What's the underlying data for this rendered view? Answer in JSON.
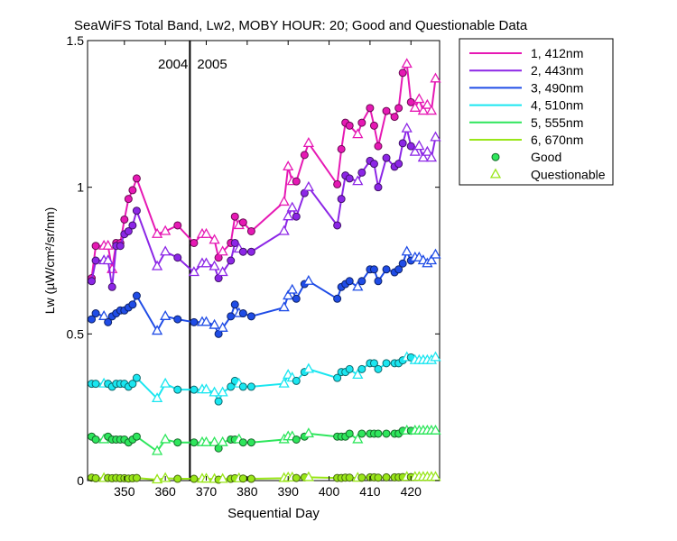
{
  "chart_data": {
    "type": "line",
    "title": "SeaWiFS Total Band,  Lw2, MOBY HOUR: 20;  Good and Questionable Data",
    "xlabel": "Sequential Day",
    "ylabel": "Lw (µW/cm²/sr/nm)",
    "xlim": [
      341,
      427
    ],
    "ylim": [
      0,
      1.5
    ],
    "xticks": [
      350,
      360,
      370,
      380,
      390,
      400,
      410,
      420
    ],
    "yticks": [
      0,
      0.5,
      1,
      1.5
    ],
    "ytick_labels": [
      "0",
      "0.5",
      "1",
      "1.5"
    ],
    "grid": false,
    "legend_position": "outside-right-top",
    "year_divider": {
      "x": 366,
      "left_label": "2004",
      "right_label": "2005"
    },
    "x": [
      342,
      343,
      345,
      346,
      347,
      348,
      349,
      350,
      351,
      352,
      353,
      358,
      360,
      363,
      367,
      369,
      370,
      372,
      373,
      374,
      376,
      377,
      378,
      379,
      381,
      389,
      390,
      391,
      392,
      394,
      395,
      402,
      403,
      404,
      405,
      407,
      408,
      410,
      411,
      412,
      414,
      416,
      417,
      418,
      419,
      420,
      421,
      422,
      423,
      424,
      425,
      426
    ],
    "series": [
      {
        "name": "1, 412nm",
        "color": "#e619b4",
        "values": [
          0.69,
          0.8,
          0.8,
          0.8,
          0.72,
          0.81,
          0.81,
          0.89,
          0.96,
          0.99,
          1.03,
          0.84,
          0.85,
          0.87,
          0.81,
          0.84,
          0.84,
          0.82,
          0.76,
          0.78,
          0.81,
          0.9,
          0.87,
          0.88,
          0.85,
          0.95,
          1.07,
          1.02,
          1.02,
          1.11,
          1.15,
          1.01,
          1.13,
          1.22,
          1.21,
          1.18,
          1.22,
          1.27,
          1.21,
          1.14,
          1.26,
          1.24,
          1.27,
          1.39,
          1.42,
          1.29,
          1.27,
          1.3,
          1.26,
          1.28,
          1.26,
          1.37
        ],
        "quality": [
          "G",
          "G",
          "Q",
          "Q",
          "Q",
          "G",
          "G",
          "G",
          "G",
          "G",
          "G",
          "Q",
          "Q",
          "G",
          "G",
          "Q",
          "Q",
          "Q",
          "G",
          "Q",
          "G",
          "G",
          "Q",
          "G",
          "G",
          "Q",
          "Q",
          "Q",
          "G",
          "G",
          "Q",
          "G",
          "G",
          "G",
          "G",
          "Q",
          "G",
          "G",
          "G",
          "G",
          "G",
          "G",
          "G",
          "G",
          "Q",
          "G",
          "Q",
          "Q",
          "Q",
          "Q",
          "Q",
          "Q"
        ]
      },
      {
        "name": "2, 443nm",
        "color": "#8c26e6",
        "values": [
          0.68,
          0.75,
          0.75,
          0.75,
          0.66,
          0.8,
          0.8,
          0.84,
          0.85,
          0.87,
          0.92,
          0.73,
          0.78,
          0.76,
          0.71,
          0.74,
          0.74,
          0.73,
          0.69,
          0.71,
          0.75,
          0.81,
          0.79,
          0.78,
          0.78,
          0.85,
          0.9,
          0.93,
          0.9,
          0.98,
          1.0,
          0.87,
          0.96,
          1.04,
          1.03,
          1.02,
          1.05,
          1.09,
          1.08,
          1.0,
          1.1,
          1.07,
          1.08,
          1.15,
          1.2,
          1.14,
          1.12,
          1.14,
          1.1,
          1.12,
          1.1,
          1.17
        ],
        "quality": [
          "G",
          "G",
          "Q",
          "Q",
          "G",
          "G",
          "G",
          "G",
          "G",
          "G",
          "G",
          "Q",
          "Q",
          "G",
          "Q",
          "Q",
          "Q",
          "Q",
          "G",
          "Q",
          "G",
          "G",
          "Q",
          "G",
          "G",
          "Q",
          "Q",
          "Q",
          "G",
          "G",
          "Q",
          "G",
          "G",
          "G",
          "G",
          "Q",
          "G",
          "G",
          "G",
          "G",
          "G",
          "G",
          "G",
          "G",
          "Q",
          "G",
          "Q",
          "Q",
          "Q",
          "Q",
          "Q",
          "Q"
        ]
      },
      {
        "name": "3, 490nm",
        "color": "#1f4ce6",
        "values": [
          0.55,
          0.57,
          0.56,
          0.54,
          0.56,
          0.57,
          0.58,
          0.58,
          0.59,
          0.6,
          0.63,
          0.51,
          0.56,
          0.55,
          0.54,
          0.54,
          0.54,
          0.53,
          0.5,
          0.52,
          0.56,
          0.6,
          0.57,
          0.57,
          0.56,
          0.59,
          0.63,
          0.65,
          0.62,
          0.67,
          0.68,
          0.62,
          0.66,
          0.67,
          0.68,
          0.66,
          0.68,
          0.72,
          0.72,
          0.68,
          0.72,
          0.71,
          0.72,
          0.74,
          0.78,
          0.75,
          0.76,
          0.76,
          0.75,
          0.74,
          0.75,
          0.77
        ],
        "quality": [
          "G",
          "G",
          "Q",
          "G",
          "G",
          "G",
          "G",
          "G",
          "G",
          "G",
          "G",
          "Q",
          "Q",
          "G",
          "G",
          "Q",
          "Q",
          "Q",
          "G",
          "Q",
          "G",
          "G",
          "Q",
          "G",
          "G",
          "Q",
          "Q",
          "Q",
          "G",
          "G",
          "Q",
          "G",
          "G",
          "G",
          "G",
          "Q",
          "G",
          "G",
          "G",
          "G",
          "G",
          "G",
          "G",
          "G",
          "Q",
          "G",
          "Q",
          "Q",
          "Q",
          "Q",
          "Q",
          "Q"
        ]
      },
      {
        "name": "4, 510nm",
        "color": "#1ae6f0",
        "values": [
          0.33,
          0.33,
          0.33,
          0.33,
          0.32,
          0.33,
          0.33,
          0.33,
          0.32,
          0.33,
          0.35,
          0.28,
          0.33,
          0.31,
          0.31,
          0.31,
          0.31,
          0.3,
          0.27,
          0.3,
          0.32,
          0.34,
          0.33,
          0.32,
          0.32,
          0.33,
          0.36,
          0.35,
          0.34,
          0.37,
          0.38,
          0.35,
          0.37,
          0.37,
          0.38,
          0.36,
          0.38,
          0.4,
          0.4,
          0.38,
          0.4,
          0.4,
          0.4,
          0.41,
          0.42,
          0.42,
          0.41,
          0.41,
          0.41,
          0.41,
          0.41,
          0.42
        ],
        "quality": [
          "G",
          "G",
          "Q",
          "G",
          "G",
          "G",
          "G",
          "G",
          "G",
          "G",
          "G",
          "Q",
          "Q",
          "G",
          "G",
          "Q",
          "Q",
          "Q",
          "G",
          "Q",
          "G",
          "G",
          "Q",
          "G",
          "G",
          "Q",
          "Q",
          "Q",
          "G",
          "G",
          "Q",
          "G",
          "G",
          "G",
          "G",
          "Q",
          "G",
          "G",
          "G",
          "G",
          "G",
          "G",
          "G",
          "G",
          "Q",
          "G",
          "Q",
          "Q",
          "Q",
          "Q",
          "Q",
          "Q"
        ]
      },
      {
        "name": "5, 555nm",
        "color": "#2ee65c",
        "values": [
          0.15,
          0.14,
          0.14,
          0.15,
          0.14,
          0.14,
          0.14,
          0.14,
          0.13,
          0.14,
          0.15,
          0.1,
          0.14,
          0.13,
          0.13,
          0.13,
          0.13,
          0.13,
          0.11,
          0.13,
          0.14,
          0.14,
          0.14,
          0.13,
          0.13,
          0.14,
          0.15,
          0.15,
          0.14,
          0.15,
          0.16,
          0.15,
          0.15,
          0.15,
          0.16,
          0.14,
          0.16,
          0.16,
          0.16,
          0.16,
          0.16,
          0.16,
          0.16,
          0.17,
          0.17,
          0.17,
          0.17,
          0.17,
          0.17,
          0.17,
          0.17,
          0.17
        ],
        "quality": [
          "G",
          "G",
          "Q",
          "G",
          "G",
          "G",
          "G",
          "G",
          "G",
          "G",
          "G",
          "Q",
          "Q",
          "G",
          "G",
          "Q",
          "Q",
          "Q",
          "G",
          "Q",
          "G",
          "G",
          "Q",
          "G",
          "G",
          "Q",
          "Q",
          "Q",
          "G",
          "G",
          "Q",
          "G",
          "G",
          "G",
          "G",
          "Q",
          "G",
          "G",
          "G",
          "G",
          "G",
          "G",
          "G",
          "G",
          "Q",
          "G",
          "Q",
          "Q",
          "Q",
          "Q",
          "Q",
          "Q"
        ]
      },
      {
        "name": "6, 670nm",
        "color": "#99e619",
        "values": [
          0.01,
          0.008,
          0.008,
          0.009,
          0.008,
          0.009,
          0.008,
          0.008,
          0.007,
          0.008,
          0.009,
          0.003,
          0.008,
          0.006,
          0.006,
          0.006,
          0.006,
          0.005,
          0.003,
          0.005,
          0.006,
          0.008,
          0.007,
          0.007,
          0.006,
          0.008,
          0.01,
          0.01,
          0.009,
          0.011,
          0.011,
          0.009,
          0.009,
          0.01,
          0.01,
          0.009,
          0.01,
          0.011,
          0.011,
          0.01,
          0.011,
          0.011,
          0.011,
          0.012,
          0.012,
          0.012,
          0.012,
          0.012,
          0.012,
          0.012,
          0.012,
          0.012
        ],
        "quality": [
          "G",
          "G",
          "Q",
          "G",
          "G",
          "G",
          "G",
          "G",
          "G",
          "G",
          "G",
          "Q",
          "Q",
          "G",
          "G",
          "Q",
          "Q",
          "Q",
          "G",
          "Q",
          "G",
          "G",
          "Q",
          "G",
          "G",
          "Q",
          "Q",
          "Q",
          "G",
          "G",
          "Q",
          "G",
          "G",
          "G",
          "G",
          "Q",
          "G",
          "G",
          "G",
          "G",
          "G",
          "G",
          "G",
          "G",
          "Q",
          "G",
          "Q",
          "Q",
          "Q",
          "Q",
          "Q",
          "Q"
        ]
      }
    ],
    "marker_legend": [
      {
        "label": "Good",
        "marker": "circle",
        "fill": "#2ee65c"
      },
      {
        "label": "Questionable",
        "marker": "triangle",
        "stroke": "#99e619"
      }
    ]
  }
}
